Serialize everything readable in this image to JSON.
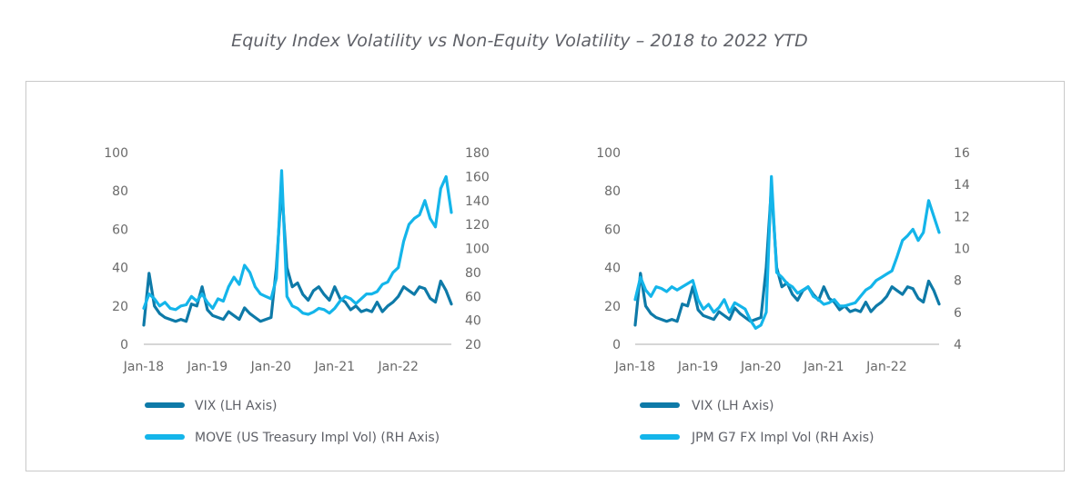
{
  "title": "Equity Index Volatility vs Non-Equity Volatility – 2018 to 2022 YTD",
  "colors": {
    "vix": "#0e7aa8",
    "move": "#14b5ea",
    "fx": "#14b5ea",
    "axis": "#c8c8c8",
    "frame": "#c9c9c9"
  },
  "chart_data": [
    {
      "type": "line",
      "x_ticks": [
        "Jan-18",
        "Jan-19",
        "Jan-20",
        "Jan-21",
        "Jan-22"
      ],
      "x_range": [
        "2018-01",
        "2022-11"
      ],
      "y_left": {
        "ticks": [
          0,
          20,
          40,
          60,
          80,
          100
        ],
        "range": [
          0,
          100
        ]
      },
      "y_right": {
        "ticks": [
          20,
          40,
          60,
          80,
          100,
          120,
          140,
          160,
          180
        ],
        "range": [
          20,
          180
        ]
      },
      "series": [
        {
          "name": "VIX (LH Axis)",
          "axis": "left",
          "x": [
            "2018-01",
            "2018-02",
            "2018-03",
            "2018-04",
            "2018-05",
            "2018-06",
            "2018-07",
            "2018-08",
            "2018-09",
            "2018-10",
            "2018-11",
            "2018-12",
            "2019-01",
            "2019-02",
            "2019-03",
            "2019-04",
            "2019-05",
            "2019-06",
            "2019-07",
            "2019-08",
            "2019-09",
            "2019-10",
            "2019-11",
            "2019-12",
            "2020-01",
            "2020-02",
            "2020-03",
            "2020-04",
            "2020-05",
            "2020-06",
            "2020-07",
            "2020-08",
            "2020-09",
            "2020-10",
            "2020-11",
            "2020-12",
            "2021-01",
            "2021-02",
            "2021-03",
            "2021-04",
            "2021-05",
            "2021-06",
            "2021-07",
            "2021-08",
            "2021-09",
            "2021-10",
            "2021-11",
            "2021-12",
            "2022-01",
            "2022-02",
            "2022-03",
            "2022-04",
            "2022-05",
            "2022-06",
            "2022-07",
            "2022-08",
            "2022-09",
            "2022-10",
            "2022-11"
          ],
          "values": [
            10,
            37,
            20,
            16,
            14,
            13,
            12,
            13,
            12,
            21,
            20,
            30,
            18,
            15,
            14,
            13,
            17,
            15,
            13,
            19,
            16,
            14,
            12,
            13,
            14,
            40,
            82,
            40,
            30,
            32,
            26,
            23,
            28,
            30,
            26,
            23,
            30,
            24,
            22,
            18,
            20,
            17,
            18,
            17,
            22,
            17,
            20,
            22,
            25,
            30,
            28,
            26,
            30,
            29,
            24,
            22,
            33,
            28,
            21
          ]
        },
        {
          "name": "MOVE (US Treasury Impl Vol) (RH Axis)",
          "axis": "right",
          "x": [
            "2018-01",
            "2018-02",
            "2018-03",
            "2018-04",
            "2018-05",
            "2018-06",
            "2018-07",
            "2018-08",
            "2018-09",
            "2018-10",
            "2018-11",
            "2018-12",
            "2019-01",
            "2019-02",
            "2019-03",
            "2019-04",
            "2019-05",
            "2019-06",
            "2019-07",
            "2019-08",
            "2019-09",
            "2019-10",
            "2019-11",
            "2019-12",
            "2020-01",
            "2020-02",
            "2020-03",
            "2020-04",
            "2020-05",
            "2020-06",
            "2020-07",
            "2020-08",
            "2020-09",
            "2020-10",
            "2020-11",
            "2020-12",
            "2021-01",
            "2021-02",
            "2021-03",
            "2021-04",
            "2021-05",
            "2021-06",
            "2021-07",
            "2021-08",
            "2021-09",
            "2021-10",
            "2021-11",
            "2021-12",
            "2022-01",
            "2022-02",
            "2022-03",
            "2022-04",
            "2022-05",
            "2022-06",
            "2022-07",
            "2022-08",
            "2022-09",
            "2022-10",
            "2022-11"
          ],
          "values": [
            50,
            62,
            58,
            52,
            55,
            50,
            49,
            52,
            53,
            60,
            56,
            62,
            55,
            50,
            58,
            56,
            68,
            76,
            70,
            86,
            80,
            68,
            62,
            60,
            58,
            75,
            165,
            60,
            52,
            50,
            46,
            45,
            47,
            50,
            49,
            46,
            50,
            56,
            60,
            58,
            54,
            58,
            62,
            62,
            64,
            70,
            72,
            80,
            84,
            106,
            120,
            125,
            128,
            140,
            125,
            118,
            150,
            160,
            130
          ]
        }
      ]
    },
    {
      "type": "line",
      "x_ticks": [
        "Jan-18",
        "Jan-19",
        "Jan-20",
        "Jan-21",
        "Jan-22"
      ],
      "x_range": [
        "2018-01",
        "2022-11"
      ],
      "y_left": {
        "ticks": [
          0,
          20,
          40,
          60,
          80,
          100
        ],
        "range": [
          0,
          100
        ]
      },
      "y_right": {
        "ticks": [
          4,
          6,
          8,
          10,
          12,
          14,
          16
        ],
        "range": [
          4,
          16
        ]
      },
      "series": [
        {
          "name": "VIX (LH Axis)",
          "axis": "left",
          "x": [
            "2018-01",
            "2018-02",
            "2018-03",
            "2018-04",
            "2018-05",
            "2018-06",
            "2018-07",
            "2018-08",
            "2018-09",
            "2018-10",
            "2018-11",
            "2018-12",
            "2019-01",
            "2019-02",
            "2019-03",
            "2019-04",
            "2019-05",
            "2019-06",
            "2019-07",
            "2019-08",
            "2019-09",
            "2019-10",
            "2019-11",
            "2019-12",
            "2020-01",
            "2020-02",
            "2020-03",
            "2020-04",
            "2020-05",
            "2020-06",
            "2020-07",
            "2020-08",
            "2020-09",
            "2020-10",
            "2020-11",
            "2020-12",
            "2021-01",
            "2021-02",
            "2021-03",
            "2021-04",
            "2021-05",
            "2021-06",
            "2021-07",
            "2021-08",
            "2021-09",
            "2021-10",
            "2021-11",
            "2021-12",
            "2022-01",
            "2022-02",
            "2022-03",
            "2022-04",
            "2022-05",
            "2022-06",
            "2022-07",
            "2022-08",
            "2022-09",
            "2022-10",
            "2022-11"
          ],
          "values": [
            10,
            37,
            20,
            16,
            14,
            13,
            12,
            13,
            12,
            21,
            20,
            30,
            18,
            15,
            14,
            13,
            17,
            15,
            13,
            19,
            16,
            14,
            12,
            13,
            14,
            40,
            82,
            40,
            30,
            32,
            26,
            23,
            28,
            30,
            26,
            23,
            30,
            24,
            22,
            18,
            20,
            17,
            18,
            17,
            22,
            17,
            20,
            22,
            25,
            30,
            28,
            26,
            30,
            29,
            24,
            22,
            33,
            28,
            21
          ]
        },
        {
          "name": "JPM G7 FX Impl Vol (RH Axis)",
          "axis": "right",
          "x": [
            "2018-01",
            "2018-02",
            "2018-03",
            "2018-04",
            "2018-05",
            "2018-06",
            "2018-07",
            "2018-08",
            "2018-09",
            "2018-10",
            "2018-11",
            "2018-12",
            "2019-01",
            "2019-02",
            "2019-03",
            "2019-04",
            "2019-05",
            "2019-06",
            "2019-07",
            "2019-08",
            "2019-09",
            "2019-10",
            "2019-11",
            "2019-12",
            "2020-01",
            "2020-02",
            "2020-03",
            "2020-04",
            "2020-05",
            "2020-06",
            "2020-07",
            "2020-08",
            "2020-09",
            "2020-10",
            "2020-11",
            "2020-12",
            "2021-01",
            "2021-02",
            "2021-03",
            "2021-04",
            "2021-05",
            "2021-06",
            "2021-07",
            "2021-08",
            "2021-09",
            "2021-10",
            "2021-11",
            "2021-12",
            "2022-01",
            "2022-02",
            "2022-03",
            "2022-04",
            "2022-05",
            "2022-06",
            "2022-07",
            "2022-08",
            "2022-09",
            "2022-10",
            "2022-11"
          ],
          "values": [
            6.8,
            8.2,
            7.4,
            7.0,
            7.6,
            7.5,
            7.3,
            7.6,
            7.4,
            7.6,
            7.8,
            8.0,
            6.8,
            6.2,
            6.5,
            6.0,
            6.3,
            6.8,
            6.0,
            6.6,
            6.4,
            6.2,
            5.5,
            5.0,
            5.2,
            6.0,
            14.5,
            8.5,
            8.2,
            7.8,
            7.6,
            7.2,
            7.4,
            7.6,
            7.0,
            6.8,
            6.5,
            6.6,
            6.8,
            6.4,
            6.4,
            6.5,
            6.6,
            7.0,
            7.4,
            7.6,
            8.0,
            8.2,
            8.4,
            8.6,
            9.5,
            10.5,
            10.8,
            11.2,
            10.5,
            11.0,
            13.0,
            12.0,
            11.0
          ]
        }
      ]
    }
  ]
}
